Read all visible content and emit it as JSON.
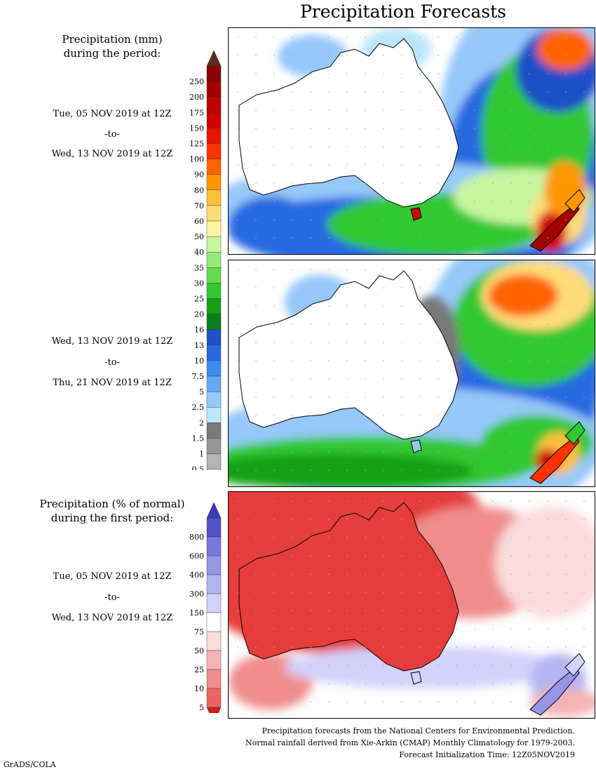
{
  "title": "Precipitation Forecasts",
  "panel1": {
    "heading_line1": "Precipitation (mm)",
    "heading_line2": "during the period:",
    "start": "Tue, 05 NOV 2019 at 12Z",
    "sep": "-to-",
    "end": "Wed, 13 NOV 2019 at 12Z"
  },
  "panel2": {
    "start": "Wed, 13 NOV 2019 at 12Z",
    "sep": "-to-",
    "end": "Thu, 21 NOV 2019 at 12Z"
  },
  "panel3": {
    "heading_line1": "Precipitation (% of normal)",
    "heading_line2": "during the first period:",
    "start": "Tue, 05 NOV 2019 at 12Z",
    "sep": "-to-",
    "end": "Wed, 13 NOV 2019 at 12Z"
  },
  "legend_mm": {
    "labels": [
      "250",
      "200",
      "175",
      "150",
      "125",
      "100",
      "90",
      "80",
      "70",
      "60",
      "50",
      "40",
      "35",
      "30",
      "25",
      "20",
      "16",
      "13",
      "10",
      "7.5",
      "5",
      "2.5",
      "2",
      "1.5",
      "1",
      "0.5"
    ],
    "colors": [
      "#8b0000",
      "#a50000",
      "#be0000",
      "#d20000",
      "#e61400",
      "#ff3200",
      "#ff6400",
      "#ff9600",
      "#ffbe3c",
      "#ffdc78",
      "#fff5a0",
      "#c8f5a0",
      "#96eb78",
      "#64dc50",
      "#32c832",
      "#14a014",
      "#0a7d1e",
      "#1e50c8",
      "#2869e1",
      "#3c8cf0",
      "#64aaf5",
      "#96c8fa",
      "#bee6fa",
      "#787878",
      "#969696",
      "#b4b4b4",
      "#d2d2d2"
    ],
    "top_color": "#5a2d1e"
  },
  "legend_pct": {
    "labels": [
      "800",
      "600",
      "400",
      "300",
      "150",
      "75",
      "50",
      "25",
      "10",
      "5"
    ],
    "colors": [
      "#5050c8",
      "#7878dc",
      "#9696e6",
      "#b4b4f0",
      "#d2d2fa",
      "#ffffff",
      "#fadcdc",
      "#f5b4b4",
      "#f08c8c",
      "#eb6464",
      "#e63c3c"
    ],
    "top_color": "#3c3cb4",
    "bottom_color": "#d21e1e"
  },
  "footer": {
    "line1": "Precipitation forecasts from the National Centers for Environmental Prediction.",
    "line2": "Normal rainfall derived from Xie-Arkin (CMAP) Monthly Climatology for 1979-2003.",
    "line3": "Forecast Initialization Time: 12Z05NOV2019"
  },
  "credit": "GrADS/COLA"
}
